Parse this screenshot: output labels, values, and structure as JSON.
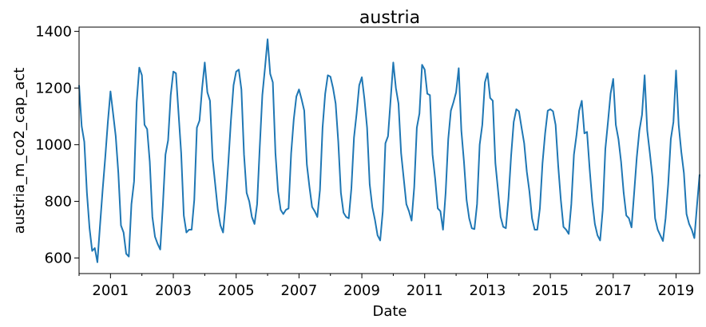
{
  "chart_data": {
    "type": "line",
    "title": "austria",
    "xlabel": "Date",
    "ylabel": "austria_m_co2_cap_act",
    "xlim": [
      "2000-01",
      "2019-10"
    ],
    "ylim": [
      545,
      1415
    ],
    "grid": false,
    "legend": "none",
    "x_ticks": [
      "2001",
      "2003",
      "2005",
      "2007",
      "2009",
      "2011",
      "2013",
      "2015",
      "2017",
      "2019"
    ],
    "y_ticks": [
      600,
      800,
      1000,
      1200,
      1400
    ],
    "series": [
      {
        "color": "#1f77b4",
        "x": [
          "2000-01",
          "2000-02",
          "2000-03",
          "2000-04",
          "2000-05",
          "2000-06",
          "2000-07",
          "2000-08",
          "2000-09",
          "2000-10",
          "2000-11",
          "2000-12",
          "2001-01",
          "2001-02",
          "2001-03",
          "2001-04",
          "2001-05",
          "2001-06",
          "2001-07",
          "2001-08",
          "2001-09",
          "2001-10",
          "2001-11",
          "2001-12",
          "2002-01",
          "2002-02",
          "2002-03",
          "2002-04",
          "2002-05",
          "2002-06",
          "2002-07",
          "2002-08",
          "2002-09",
          "2002-10",
          "2002-11",
          "2002-12",
          "2003-01",
          "2003-02",
          "2003-03",
          "2003-04",
          "2003-05",
          "2003-06",
          "2003-07",
          "2003-08",
          "2003-09",
          "2003-10",
          "2003-11",
          "2003-12",
          "2004-01",
          "2004-02",
          "2004-03",
          "2004-04",
          "2004-05",
          "2004-06",
          "2004-07",
          "2004-08",
          "2004-09",
          "2004-10",
          "2004-11",
          "2004-12",
          "2005-01",
          "2005-02",
          "2005-03",
          "2005-04",
          "2005-05",
          "2005-06",
          "2005-07",
          "2005-08",
          "2005-09",
          "2005-10",
          "2005-11",
          "2005-12",
          "2006-01",
          "2006-02",
          "2006-03",
          "2006-04",
          "2006-05",
          "2006-06",
          "2006-07",
          "2006-08",
          "2006-09",
          "2006-10",
          "2006-11",
          "2006-12",
          "2007-01",
          "2007-02",
          "2007-03",
          "2007-04",
          "2007-05",
          "2007-06",
          "2007-07",
          "2007-08",
          "2007-09",
          "2007-10",
          "2007-11",
          "2007-12",
          "2008-01",
          "2008-02",
          "2008-03",
          "2008-04",
          "2008-05",
          "2008-06",
          "2008-07",
          "2008-08",
          "2008-09",
          "2008-10",
          "2008-11",
          "2008-12",
          "2009-01",
          "2009-02",
          "2009-03",
          "2009-04",
          "2009-05",
          "2009-06",
          "2009-07",
          "2009-08",
          "2009-09",
          "2009-10",
          "2009-11",
          "2009-12",
          "2010-01",
          "2010-02",
          "2010-03",
          "2010-04",
          "2010-05",
          "2010-06",
          "2010-07",
          "2010-08",
          "2010-09",
          "2010-10",
          "2010-11",
          "2010-12",
          "2011-01",
          "2011-02",
          "2011-03",
          "2011-04",
          "2011-05",
          "2011-06",
          "2011-07",
          "2011-08",
          "2011-09",
          "2011-10",
          "2011-11",
          "2011-12",
          "2012-01",
          "2012-02",
          "2012-03",
          "2012-04",
          "2012-05",
          "2012-06",
          "2012-07",
          "2012-08",
          "2012-09",
          "2012-10",
          "2012-11",
          "2012-12",
          "2013-01",
          "2013-02",
          "2013-03",
          "2013-04",
          "2013-05",
          "2013-06",
          "2013-07",
          "2013-08",
          "2013-09",
          "2013-10",
          "2013-11",
          "2013-12",
          "2014-01",
          "2014-02",
          "2014-03",
          "2014-04",
          "2014-05",
          "2014-06",
          "2014-07",
          "2014-08",
          "2014-09",
          "2014-10",
          "2014-11",
          "2014-12",
          "2015-01",
          "2015-02",
          "2015-03",
          "2015-04",
          "2015-05",
          "2015-06",
          "2015-07",
          "2015-08",
          "2015-09",
          "2015-10",
          "2015-11",
          "2015-12",
          "2016-01",
          "2016-02",
          "2016-03",
          "2016-04",
          "2016-05",
          "2016-06",
          "2016-07",
          "2016-08",
          "2016-09",
          "2016-10",
          "2016-11",
          "2016-12",
          "2017-01",
          "2017-02",
          "2017-03",
          "2017-04",
          "2017-05",
          "2017-06",
          "2017-07",
          "2017-08",
          "2017-09",
          "2017-10",
          "2017-11",
          "2017-12",
          "2018-01",
          "2018-02",
          "2018-03",
          "2018-04",
          "2018-05",
          "2018-06",
          "2018-07",
          "2018-08",
          "2018-09",
          "2018-10",
          "2018-11",
          "2018-12",
          "2019-01",
          "2019-02",
          "2019-03",
          "2019-04",
          "2019-05",
          "2019-06",
          "2019-07",
          "2019-08",
          "2019-09",
          "2019-10"
        ],
        "values": [
          1210,
          1065,
          1010,
          830,
          705,
          625,
          635,
          585,
          715,
          840,
          955,
          1080,
          1188,
          1110,
          1030,
          900,
          715,
          690,
          615,
          605,
          790,
          870,
          1150,
          1272,
          1245,
          1070,
          1055,
          940,
          745,
          675,
          650,
          630,
          785,
          965,
          1015,
          1175,
          1258,
          1252,
          1110,
          970,
          750,
          690,
          700,
          700,
          805,
          1060,
          1085,
          1200,
          1290,
          1185,
          1155,
          950,
          860,
          770,
          715,
          690,
          795,
          935,
          1085,
          1210,
          1258,
          1265,
          1195,
          965,
          830,
          800,
          745,
          720,
          790,
          990,
          1175,
          1270,
          1372,
          1250,
          1220,
          970,
          835,
          770,
          755,
          770,
          775,
          970,
          1090,
          1170,
          1195,
          1160,
          1120,
          930,
          850,
          780,
          765,
          745,
          840,
          1060,
          1180,
          1245,
          1240,
          1200,
          1145,
          1010,
          830,
          760,
          745,
          740,
          845,
          1025,
          1110,
          1210,
          1238,
          1160,
          1060,
          860,
          780,
          735,
          680,
          662,
          765,
          1005,
          1030,
          1160,
          1290,
          1200,
          1145,
          970,
          880,
          790,
          765,
          732,
          850,
          1060,
          1110,
          1282,
          1265,
          1180,
          1175,
          965,
          880,
          775,
          765,
          700,
          830,
          1020,
          1120,
          1150,
          1185,
          1270,
          1050,
          940,
          805,
          740,
          705,
          702,
          790,
          1000,
          1070,
          1220,
          1252,
          1165,
          1155,
          935,
          840,
          745,
          710,
          705,
          810,
          960,
          1080,
          1125,
          1118,
          1060,
          1005,
          905,
          835,
          740,
          700,
          700,
          775,
          935,
          1040,
          1120,
          1125,
          1118,
          1070,
          925,
          805,
          710,
          700,
          685,
          790,
          965,
          1035,
          1120,
          1155,
          1040,
          1045,
          915,
          800,
          720,
          680,
          662,
          770,
          985,
          1080,
          1180,
          1232,
          1070,
          1020,
          940,
          830,
          750,
          740,
          708,
          830,
          955,
          1050,
          1105,
          1245,
          1050,
          970,
          885,
          740,
          700,
          680,
          660,
          740,
          860,
          1020,
          1080,
          1262,
          1070,
          975,
          900,
          755,
          720,
          700,
          670,
          785,
          895
        ]
      }
    ]
  }
}
